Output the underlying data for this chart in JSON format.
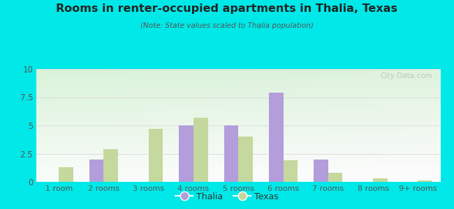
{
  "title": "Rooms in renter-occupied apartments in Thalia, Texas",
  "subtitle": "(Note: State values scaled to Thalia population)",
  "categories": [
    "1 room",
    "2 rooms",
    "3 rooms",
    "4 rooms",
    "5 rooms",
    "6 rooms",
    "7 rooms",
    "8 rooms",
    "9+ rooms"
  ],
  "thalia_values": [
    0,
    2.0,
    0,
    5.0,
    5.0,
    7.9,
    2.0,
    0,
    0
  ],
  "texas_values": [
    1.3,
    2.9,
    4.7,
    5.7,
    4.0,
    1.9,
    0.8,
    0.3,
    0.1
  ],
  "thalia_color": "#b39ddb",
  "texas_color": "#c5d89d",
  "background_outer": "#00e8e8",
  "ylim": [
    0,
    10
  ],
  "yticks": [
    0,
    2.5,
    5,
    7.5,
    10
  ],
  "ytick_labels": [
    "0",
    "2.5",
    "5",
    "7.5",
    "10"
  ],
  "bar_width": 0.32,
  "legend_thalia": "Thalia",
  "legend_texas": "Texas",
  "watermark": "City-Data.com",
  "grid_color": "#dddddd",
  "title_color": "#222222",
  "subtitle_color": "#555555",
  "tick_label_color": "#555555"
}
